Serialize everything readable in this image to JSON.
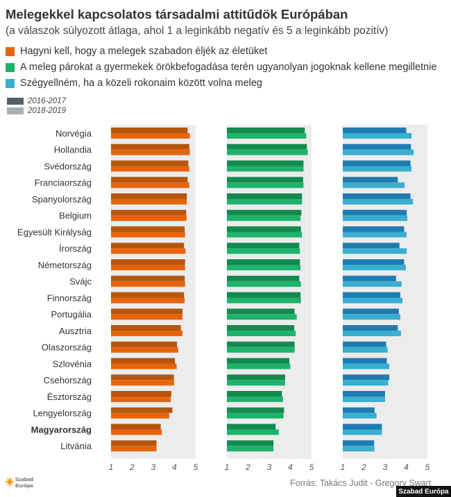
{
  "title": "Melegekkel  kapcsolatos  társadalmi attitűdök Európában",
  "subtitle": "(a válaszok súlyozott átlaga, ahol 1 a leginkább negatív és 5 a leginkább pozitív)",
  "legend": [
    {
      "label": "Hagyni kell, hogy a melegek szabadon éljék az életüket",
      "color": "#e8640c"
    },
    {
      "label": "A meleg párokat a gyermekek örökbefogadása terén ugyanolyan jogoknak kellene megilletnie",
      "color": "#1fb26b"
    },
    {
      "label": "Szégyellném, ha a közeli rokonaim között volna meleg",
      "color": "#3aaecf"
    }
  ],
  "periods": [
    {
      "label": "2016-2017",
      "color": "#555f66"
    },
    {
      "label": "2018-2019",
      "color": "#a9afb2"
    }
  ],
  "source": "Forrás: Takács Judit - Gregory Swart",
  "logo_text": [
    "Szabad",
    "Európa"
  ],
  "brand": "Szabad Európa",
  "chart_data": {
    "type": "bar",
    "orientation": "horizontal",
    "xlim": [
      1,
      5
    ],
    "tick_labels": [
      "1",
      "2",
      "3",
      "4",
      "5"
    ],
    "highlight": "Magyarország",
    "categories": [
      "Norvégia",
      "Hollandia",
      "Svédország",
      "Franciaország",
      "Spanyolország",
      "Belgium",
      "Egyesült Királyság",
      "Írország",
      "Németország",
      "Svájc",
      "Finnország",
      "Portugália",
      "Ausztria",
      "Olaszország",
      "Szlovénia",
      "Csehország",
      "Észtország",
      "Lengyelország",
      "Magyarország",
      "Litvánia"
    ],
    "panels": [
      {
        "series": [
          {
            "name": "2016-2017",
            "color": "#b4560f",
            "values": [
              4.62,
              4.7,
              4.65,
              4.62,
              4.58,
              4.55,
              4.48,
              4.45,
              4.5,
              4.48,
              4.45,
              4.38,
              4.3,
              4.12,
              4.02,
              3.97,
              3.85,
              3.9,
              3.35,
              3.15
            ]
          },
          {
            "name": "2018-2019",
            "color": "#e8640c",
            "values": [
              4.72,
              4.72,
              4.7,
              4.7,
              4.58,
              4.57,
              4.5,
              4.52,
              4.5,
              4.5,
              4.48,
              4.38,
              4.38,
              4.17,
              4.1,
              3.98,
              3.82,
              3.75,
              3.4,
              3.15
            ]
          }
        ]
      },
      {
        "series": [
          {
            "name": "2016-2017",
            "color": "#148a50",
            "values": [
              4.68,
              4.78,
              4.62,
              4.6,
              4.55,
              4.52,
              4.5,
              4.42,
              4.45,
              4.42,
              4.48,
              4.2,
              4.18,
              4.2,
              3.95,
              3.75,
              3.6,
              3.7,
              3.3,
              3.2
            ]
          },
          {
            "name": "2018-2019",
            "color": "#1fb26b",
            "values": [
              4.75,
              4.82,
              4.62,
              4.62,
              4.55,
              4.48,
              4.55,
              4.45,
              4.48,
              4.5,
              4.5,
              4.3,
              4.25,
              4.2,
              4.0,
              3.75,
              3.65,
              3.68,
              3.45,
              3.2
            ]
          }
        ]
      },
      {
        "series": [
          {
            "name": "2016-2017",
            "color": "#1f7bb0",
            "values": [
              4.0,
              4.22,
              4.2,
              3.6,
              4.2,
              4.02,
              3.9,
              3.68,
              3.9,
              3.52,
              3.72,
              3.65,
              3.6,
              3.05,
              3.08,
              3.2,
              3.0,
              2.5,
              2.85,
              2.48
            ]
          },
          {
            "name": "2018-2019",
            "color": "#3aaecf",
            "values": [
              4.25,
              4.35,
              4.25,
              3.92,
              4.32,
              4.05,
              4.02,
              4.02,
              3.98,
              3.78,
              3.82,
              3.72,
              3.75,
              3.12,
              3.2,
              3.15,
              3.0,
              2.6,
              2.85,
              2.5
            ]
          }
        ]
      }
    ]
  }
}
